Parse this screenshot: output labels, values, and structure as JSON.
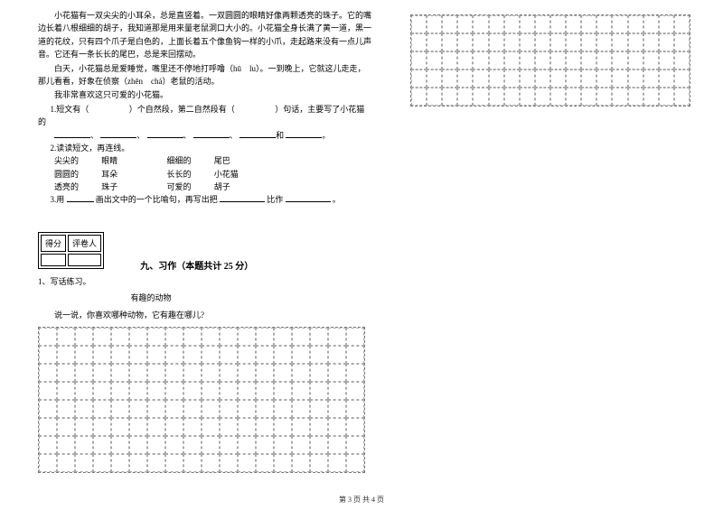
{
  "passage": {
    "p1": "小花猫有一双尖尖的小耳朵，总是直竖着。一双圆圆的眼睛好像两颗透亮的珠子。它的嘴边长着八根细细的胡子，我知道那是用来量老鼠洞口大小的。小花猫全身长满了黄一道，黑一道的花纹，只有四个爪子是白色的，上面长着五个像鱼钩一样的小爪，走起路来没有一点儿声音。它还有一条长长的尾巴，总是来回摆动。",
    "p2": "白天，小花猫总是爱睡觉，嘴里还不停地打呼噜（hū　lu）。一到晚上，它就这儿走走，那儿看看，好象在侦察（zhēn　chá）老鼠的活动。",
    "p3": "我非常喜欢这只可爱的小花猫。"
  },
  "questions": {
    "q1_prefix": "1.短文有（",
    "q1_mid": "）个自然段，第二自然段有（",
    "q1_suffix": "）句话，主要写了小花猫的",
    "q1_line2_items": [
      "、",
      "、",
      "、",
      "、",
      "和",
      "。"
    ],
    "q2": "2.读读短文，再连线。",
    "connect": [
      [
        "尖尖的",
        "眼睛",
        "细细的",
        "尾巴"
      ],
      [
        "圆圆的",
        "耳朵",
        "长长的",
        "小花猫"
      ],
      [
        "透亮的",
        "珠子",
        "可爱的",
        "胡子"
      ]
    ],
    "q3_prefix": "3.用",
    "q3_mid": "画出文中的一个比喻句，再写出把",
    "q3_mid2": "比作",
    "q3_suffix": "。"
  },
  "score_labels": {
    "score": "得分",
    "grader": "评卷人"
  },
  "section9": {
    "title": "九、习作（本题共计 25 分）",
    "item1": "1、写话练习。",
    "subtitle": "有趣的动物",
    "prompt": "说一说，你喜欢哪种动物，它有趣在哪儿?"
  },
  "footer": "第 3 页 共 4 页",
  "grid": {
    "left_cols": 18,
    "left_rows": 8,
    "right_cols": 18,
    "right_rows": 5,
    "border_color": "#aaaaaa"
  }
}
